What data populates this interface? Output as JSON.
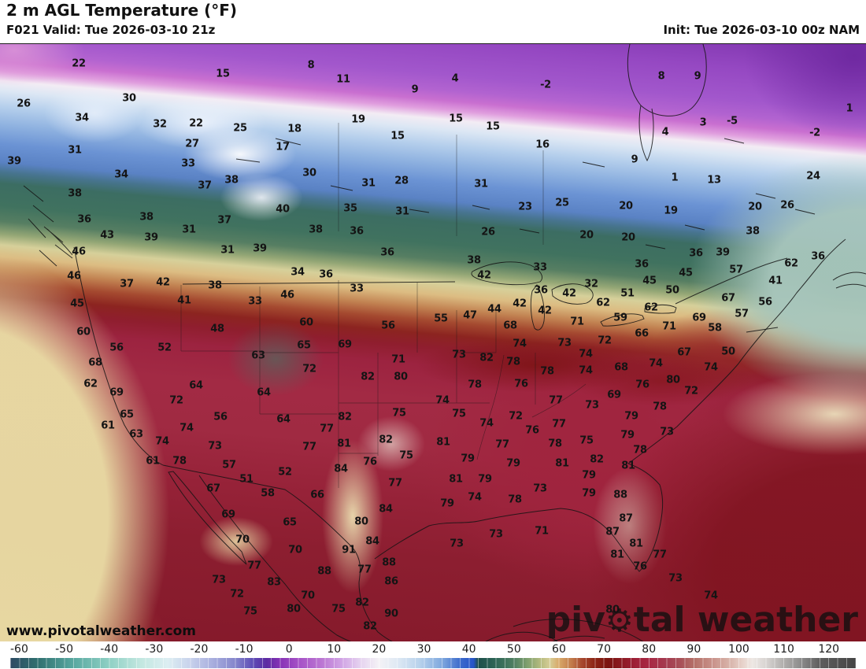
{
  "header": {
    "title": "2 m AGL Temperature (°F)",
    "valid": "F021 Valid: Tue 2026-03-10 21z",
    "init": "Init: Tue 2026-03-10 00z NAM"
  },
  "map": {
    "attribution": "www.pivotalweather.com",
    "watermark": {
      "prefix": "piv",
      "suffix": "tal weather",
      "gear_icon": "gear"
    },
    "labels": [
      [
        22,
        100,
        25
      ],
      [
        15,
        283,
        38
      ],
      [
        8,
        395,
        27
      ],
      [
        11,
        436,
        45
      ],
      [
        9,
        527,
        58
      ],
      [
        4,
        578,
        44
      ],
      [
        -2,
        693,
        52
      ],
      [
        8,
        840,
        41
      ],
      [
        9,
        886,
        41
      ],
      [
        1,
        1079,
        82
      ],
      [
        26,
        30,
        76
      ],
      [
        30,
        164,
        69
      ],
      [
        34,
        104,
        94
      ],
      [
        32,
        203,
        102
      ],
      [
        22,
        249,
        101
      ],
      [
        25,
        305,
        107
      ],
      [
        18,
        374,
        108
      ],
      [
        19,
        455,
        96
      ],
      [
        15,
        505,
        117
      ],
      [
        15,
        579,
        95
      ],
      [
        15,
        626,
        105
      ],
      [
        16,
        689,
        128
      ],
      [
        3,
        893,
        100
      ],
      [
        -5,
        930,
        98
      ],
      [
        4,
        845,
        112
      ],
      [
        -2,
        1035,
        113
      ],
      [
        31,
        95,
        135
      ],
      [
        27,
        244,
        127
      ],
      [
        17,
        359,
        131
      ],
      [
        9,
        806,
        147
      ],
      [
        1,
        857,
        170
      ],
      [
        13,
        907,
        173
      ],
      [
        24,
        1033,
        168
      ],
      [
        39,
        18,
        149
      ],
      [
        33,
        239,
        152
      ],
      [
        34,
        154,
        166
      ],
      [
        30,
        393,
        164
      ],
      [
        31,
        611,
        178
      ],
      [
        37,
        260,
        180
      ],
      [
        38,
        294,
        173
      ],
      [
        31,
        468,
        177
      ],
      [
        28,
        510,
        174
      ],
      [
        38,
        95,
        190
      ],
      [
        23,
        667,
        207
      ],
      [
        25,
        714,
        202
      ],
      [
        20,
        795,
        206
      ],
      [
        19,
        852,
        212
      ],
      [
        20,
        959,
        207
      ],
      [
        26,
        1000,
        205
      ],
      [
        36,
        107,
        223
      ],
      [
        43,
        136,
        243
      ],
      [
        38,
        186,
        220
      ],
      [
        39,
        192,
        246
      ],
      [
        31,
        240,
        236
      ],
      [
        37,
        285,
        224
      ],
      [
        40,
        359,
        210
      ],
      [
        38,
        401,
        236
      ],
      [
        35,
        445,
        209
      ],
      [
        36,
        453,
        238
      ],
      [
        31,
        511,
        213
      ],
      [
        26,
        620,
        239
      ],
      [
        20,
        745,
        243
      ],
      [
        20,
        798,
        246
      ],
      [
        38,
        956,
        238
      ],
      [
        46,
        100,
        264
      ],
      [
        31,
        289,
        262
      ],
      [
        39,
        330,
        260
      ],
      [
        36,
        492,
        265
      ],
      [
        46,
        94,
        295
      ],
      [
        37,
        161,
        305
      ],
      [
        42,
        207,
        303
      ],
      [
        38,
        273,
        307
      ],
      [
        34,
        378,
        290
      ],
      [
        36,
        414,
        293
      ],
      [
        33,
        453,
        311
      ],
      [
        41,
        234,
        326
      ],
      [
        45,
        98,
        330
      ],
      [
        33,
        324,
        327
      ],
      [
        46,
        365,
        319
      ],
      [
        38,
        602,
        275
      ],
      [
        42,
        615,
        294
      ],
      [
        33,
        686,
        284
      ],
      [
        36,
        687,
        313
      ],
      [
        32,
        751,
        305
      ],
      [
        36,
        815,
        280
      ],
      [
        36,
        884,
        266
      ],
      [
        39,
        918,
        265
      ],
      [
        45,
        871,
        291
      ],
      [
        45,
        825,
        301
      ],
      [
        57,
        935,
        287
      ],
      [
        62,
        1005,
        279
      ],
      [
        36,
        1039,
        270
      ],
      [
        41,
        985,
        301
      ],
      [
        50,
        854,
        313
      ],
      [
        51,
        797,
        317
      ],
      [
        42,
        723,
        317
      ],
      [
        42,
        660,
        330
      ],
      [
        42,
        692,
        339
      ],
      [
        44,
        628,
        337
      ],
      [
        47,
        597,
        345
      ],
      [
        55,
        560,
        349
      ],
      [
        62,
        766,
        329
      ],
      [
        67,
        925,
        323
      ],
      [
        56,
        972,
        328
      ],
      [
        59,
        788,
        348
      ],
      [
        62,
        827,
        335
      ],
      [
        57,
        942,
        343
      ],
      [
        60,
        106,
        366
      ],
      [
        48,
        276,
        362
      ],
      [
        60,
        389,
        354
      ],
      [
        56,
        493,
        358
      ],
      [
        56,
        148,
        386
      ],
      [
        52,
        209,
        386
      ],
      [
        65,
        386,
        383
      ],
      [
        69,
        438,
        382
      ],
      [
        63,
        328,
        396
      ],
      [
        68,
        121,
        405
      ],
      [
        72,
        393,
        413
      ],
      [
        71,
        506,
        401
      ],
      [
        62,
        115,
        432
      ],
      [
        82,
        467,
        423
      ],
      [
        80,
        509,
        423
      ],
      [
        64,
        249,
        434
      ],
      [
        69,
        148,
        443
      ],
      [
        64,
        335,
        443
      ],
      [
        72,
        224,
        453
      ],
      [
        65,
        161,
        471
      ],
      [
        56,
        280,
        474
      ],
      [
        64,
        360,
        477
      ],
      [
        82,
        438,
        474
      ],
      [
        75,
        507,
        469
      ],
      [
        61,
        137,
        485
      ],
      [
        77,
        415,
        489
      ],
      [
        74,
        237,
        488
      ],
      [
        63,
        173,
        496
      ],
      [
        68,
        648,
        358
      ],
      [
        71,
        733,
        353
      ],
      [
        69,
        888,
        348
      ],
      [
        71,
        850,
        359
      ],
      [
        66,
        815,
        368
      ],
      [
        58,
        908,
        361
      ],
      [
        74,
        660,
        381
      ],
      [
        73,
        717,
        380
      ],
      [
        72,
        768,
        377
      ],
      [
        73,
        583,
        395
      ],
      [
        82,
        618,
        399
      ],
      [
        78,
        652,
        404
      ],
      [
        74,
        744,
        394
      ],
      [
        67,
        869,
        392
      ],
      [
        50,
        925,
        391
      ],
      [
        68,
        789,
        411
      ],
      [
        74,
        833,
        406
      ],
      [
        74,
        903,
        411
      ],
      [
        78,
        695,
        416
      ],
      [
        74,
        744,
        415
      ],
      [
        78,
        603,
        433
      ],
      [
        76,
        662,
        432
      ],
      [
        80,
        855,
        427
      ],
      [
        76,
        816,
        433
      ],
      [
        72,
        878,
        441
      ],
      [
        74,
        562,
        453
      ],
      [
        77,
        706,
        453
      ],
      [
        69,
        780,
        446
      ],
      [
        73,
        752,
        459
      ],
      [
        78,
        838,
        461
      ],
      [
        75,
        583,
        470
      ],
      [
        72,
        655,
        473
      ],
      [
        79,
        802,
        473
      ],
      [
        74,
        618,
        482
      ],
      [
        77,
        710,
        483
      ],
      [
        76,
        676,
        491
      ],
      [
        79,
        797,
        497
      ],
      [
        73,
        847,
        493
      ],
      [
        74,
        206,
        505
      ],
      [
        73,
        273,
        511
      ],
      [
        61,
        194,
        530
      ],
      [
        78,
        228,
        530
      ],
      [
        57,
        291,
        535
      ],
      [
        51,
        313,
        553
      ],
      [
        52,
        362,
        544
      ],
      [
        77,
        393,
        512
      ],
      [
        81,
        437,
        508
      ],
      [
        82,
        490,
        503
      ],
      [
        75,
        516,
        523
      ],
      [
        76,
        470,
        531
      ],
      [
        84,
        433,
        540
      ],
      [
        77,
        502,
        558
      ],
      [
        67,
        271,
        565
      ],
      [
        58,
        340,
        571
      ],
      [
        66,
        403,
        573
      ],
      [
        84,
        490,
        591
      ],
      [
        69,
        290,
        598
      ],
      [
        65,
        368,
        608
      ],
      [
        80,
        459,
        607
      ],
      [
        70,
        308,
        630
      ],
      [
        70,
        375,
        643
      ],
      [
        91,
        443,
        643
      ],
      [
        84,
        473,
        632
      ],
      [
        88,
        494,
        659
      ],
      [
        77,
        323,
        663
      ],
      [
        88,
        412,
        670
      ],
      [
        77,
        463,
        668
      ],
      [
        86,
        497,
        683
      ],
      [
        73,
        278,
        681
      ],
      [
        83,
        348,
        684
      ],
      [
        72,
        301,
        699
      ],
      [
        70,
        391,
        701
      ],
      [
        82,
        460,
        710
      ],
      [
        75,
        318,
        721
      ],
      [
        80,
        373,
        718
      ],
      [
        75,
        430,
        718
      ],
      [
        90,
        497,
        724
      ],
      [
        82,
        470,
        740
      ],
      [
        81,
        563,
        506
      ],
      [
        77,
        638,
        509
      ],
      [
        78,
        705,
        508
      ],
      [
        75,
        745,
        504
      ],
      [
        78,
        813,
        516
      ],
      [
        79,
        594,
        527
      ],
      [
        79,
        652,
        533
      ],
      [
        81,
        714,
        533
      ],
      [
        82,
        758,
        528
      ],
      [
        81,
        798,
        536
      ],
      [
        81,
        579,
        553
      ],
      [
        79,
        616,
        553
      ],
      [
        79,
        748,
        548
      ],
      [
        74,
        603,
        576
      ],
      [
        73,
        686,
        565
      ],
      [
        78,
        654,
        579
      ],
      [
        79,
        568,
        584
      ],
      [
        79,
        748,
        571
      ],
      [
        88,
        788,
        573
      ],
      [
        87,
        795,
        603
      ],
      [
        73,
        630,
        623
      ],
      [
        71,
        688,
        619
      ],
      [
        73,
        580,
        635
      ],
      [
        87,
        778,
        620
      ],
      [
        81,
        808,
        635
      ],
      [
        81,
        784,
        649
      ],
      [
        76,
        813,
        664
      ],
      [
        77,
        838,
        649
      ],
      [
        73,
        858,
        679
      ],
      [
        74,
        903,
        701
      ],
      [
        80,
        778,
        719
      ]
    ]
  },
  "colorbar": {
    "unit": "°F",
    "ticks": [
      -60,
      -50,
      -40,
      -30,
      -20,
      -10,
      0,
      10,
      20,
      30,
      40,
      50,
      60,
      70,
      80,
      90,
      100,
      110,
      120
    ],
    "bar_range": [
      -62,
      126
    ],
    "stops": [
      [
        -62,
        "#2e4a63"
      ],
      [
        -56,
        "#2f6f6f"
      ],
      [
        -48,
        "#58a8a0"
      ],
      [
        -40,
        "#8fd0c4"
      ],
      [
        -33,
        "#c2e7e0"
      ],
      [
        -27,
        "#dceef2"
      ],
      [
        -22,
        "#c8d2ec"
      ],
      [
        -17,
        "#a8aede"
      ],
      [
        -12,
        "#8586cc"
      ],
      [
        -8,
        "#5e4cb6"
      ],
      [
        -5,
        "#5c2ba2"
      ],
      [
        -2,
        "#8632b6"
      ],
      [
        2,
        "#a450c6"
      ],
      [
        7,
        "#ba74d2"
      ],
      [
        12,
        "#d2a6e6"
      ],
      [
        16,
        "#e6d4f0"
      ],
      [
        20,
        "#f4f2f6"
      ],
      [
        24,
        "#dfe9f4"
      ],
      [
        29,
        "#b8d2ec"
      ],
      [
        34,
        "#7fa8de"
      ],
      [
        38,
        "#3d6ccc"
      ],
      [
        41,
        "#2553c8"
      ],
      [
        42,
        "#1d4f4a"
      ],
      [
        46,
        "#2e6656"
      ],
      [
        50,
        "#4f7f62"
      ],
      [
        53,
        "#7fa06e"
      ],
      [
        56,
        "#b7bc80"
      ],
      [
        58,
        "#d6cd96"
      ],
      [
        60,
        "#d8a868"
      ],
      [
        63,
        "#c07848"
      ],
      [
        65,
        "#a84a30"
      ],
      [
        68,
        "#8c2414"
      ],
      [
        71,
        "#7a1410"
      ],
      [
        74,
        "#8c1a22"
      ],
      [
        77,
        "#9e2038"
      ],
      [
        80,
        "#a82844"
      ],
      [
        84,
        "#a43c50"
      ],
      [
        87,
        "#a85058"
      ],
      [
        90,
        "#b47068"
      ],
      [
        94,
        "#c89088"
      ],
      [
        98,
        "#d8b4aa"
      ],
      [
        101,
        "#e8d4cc"
      ],
      [
        103,
        "#eee8e4"
      ],
      [
        106,
        "#d8d4d2"
      ],
      [
        110,
        "#b0aeac"
      ],
      [
        114,
        "#8a8a8a"
      ],
      [
        118,
        "#5e5e5e"
      ],
      [
        126,
        "#444444"
      ]
    ]
  }
}
